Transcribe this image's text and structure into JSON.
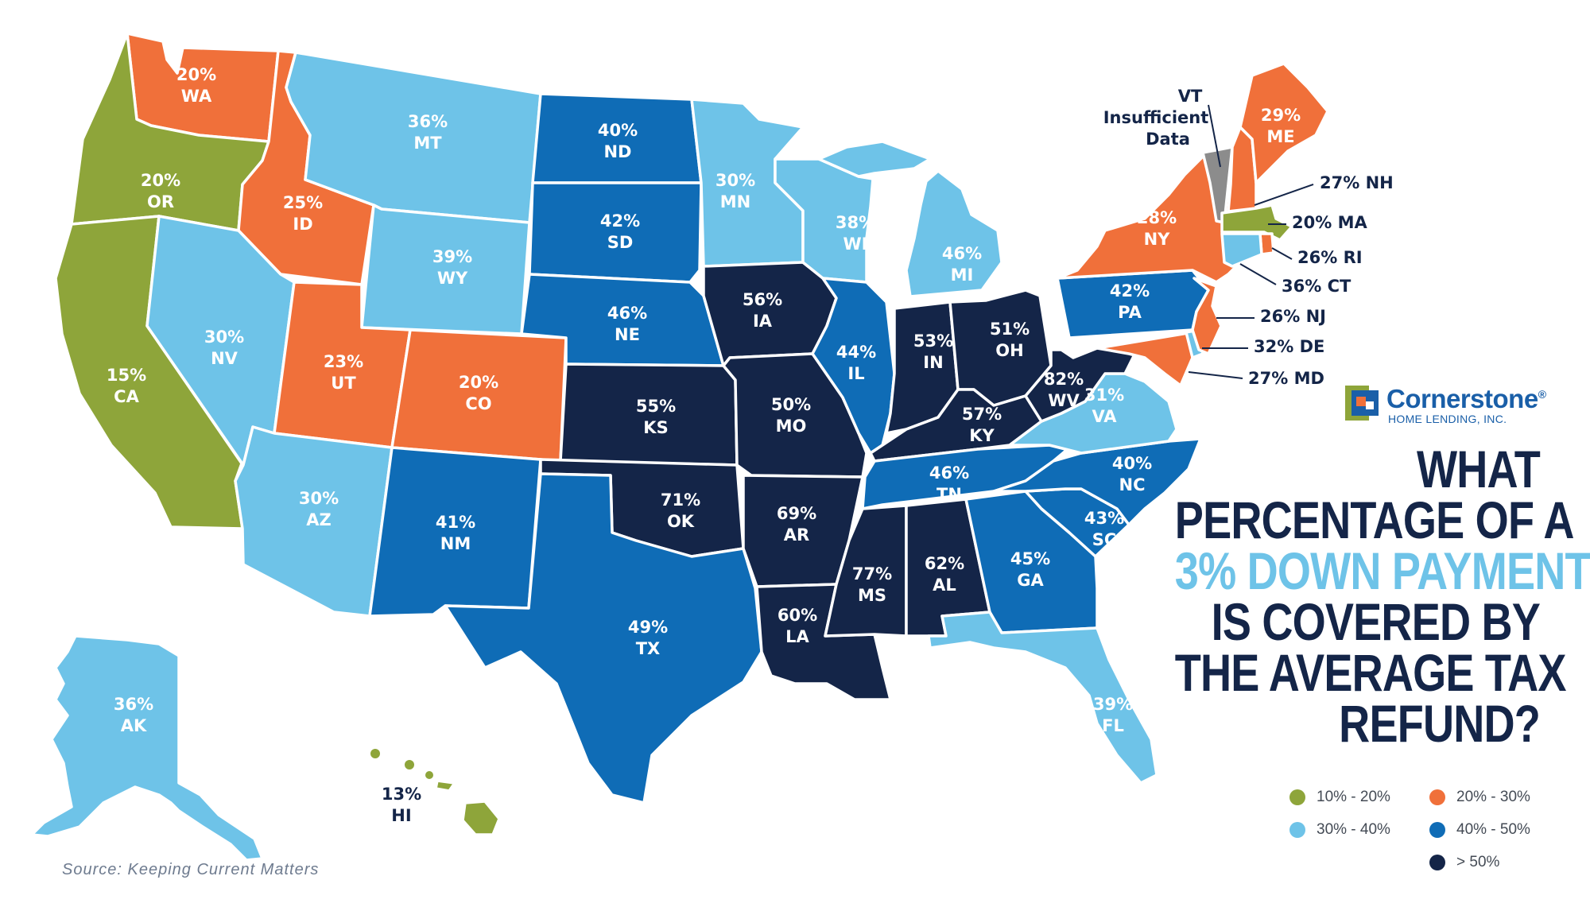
{
  "title": {
    "line1": "WHAT",
    "line2": "PERCENTAGE OF A",
    "line3": "3% DOWN PAYMENT",
    "line4": "IS COVERED BY",
    "line5": "THE AVERAGE TAX",
    "line6": "REFUND?"
  },
  "colors": {
    "c10_20": "#8ea53a",
    "c20_30": "#f0703a",
    "c30_40": "#6ec3e8",
    "c40_50": "#0f6cb6",
    "c50_plus": "#142548",
    "no_data": "#8c8c8c",
    "title_dark": "#142548",
    "title_accent": "#6ec3e8"
  },
  "logo": {
    "name": "Cornerstone",
    "registered": "®",
    "subtitle": "HOME LENDING, INC."
  },
  "legend": [
    {
      "label": "10% - 20%",
      "color": "#8ea53a"
    },
    {
      "label": "20% - 30%",
      "color": "#f0703a"
    },
    {
      "label": "30% - 40%",
      "color": "#6ec3e8"
    },
    {
      "label": "40% - 50%",
      "color": "#0f6cb6"
    },
    {
      "label": "> 50%",
      "color": "#142548"
    }
  ],
  "source": "Source: Keeping Current Matters",
  "states": {
    "WA": {
      "pct": "20%",
      "abbr": "WA"
    },
    "OR": {
      "pct": "20%",
      "abbr": "OR"
    },
    "CA": {
      "pct": "15%",
      "abbr": "CA"
    },
    "ID": {
      "pct": "25%",
      "abbr": "ID"
    },
    "NV": {
      "pct": "30%",
      "abbr": "NV"
    },
    "MT": {
      "pct": "36%",
      "abbr": "MT"
    },
    "WY": {
      "pct": "39%",
      "abbr": "WY"
    },
    "UT": {
      "pct": "23%",
      "abbr": "UT"
    },
    "CO": {
      "pct": "20%",
      "abbr": "CO"
    },
    "AZ": {
      "pct": "30%",
      "abbr": "AZ"
    },
    "NM": {
      "pct": "41%",
      "abbr": "NM"
    },
    "ND": {
      "pct": "40%",
      "abbr": "ND"
    },
    "SD": {
      "pct": "42%",
      "abbr": "SD"
    },
    "NE": {
      "pct": "46%",
      "abbr": "NE"
    },
    "KS": {
      "pct": "55%",
      "abbr": "KS"
    },
    "OK": {
      "pct": "71%",
      "abbr": "OK"
    },
    "TX": {
      "pct": "49%",
      "abbr": "TX"
    },
    "MN": {
      "pct": "30%",
      "abbr": "MN"
    },
    "IA": {
      "pct": "56%",
      "abbr": "IA"
    },
    "MO": {
      "pct": "50%",
      "abbr": "MO"
    },
    "AR": {
      "pct": "69%",
      "abbr": "AR"
    },
    "LA": {
      "pct": "60%",
      "abbr": "LA"
    },
    "WI": {
      "pct": "38%",
      "abbr": "WI"
    },
    "IL": {
      "pct": "44%",
      "abbr": "IL"
    },
    "MI": {
      "pct": "46%",
      "abbr": "MI"
    },
    "IN": {
      "pct": "53%",
      "abbr": "IN"
    },
    "OH": {
      "pct": "51%",
      "abbr": "OH"
    },
    "KY": {
      "pct": "57%",
      "abbr": "KY"
    },
    "TN": {
      "pct": "46%",
      "abbr": "TN"
    },
    "MS": {
      "pct": "77%",
      "abbr": "MS"
    },
    "AL": {
      "pct": "62%",
      "abbr": "AL"
    },
    "GA": {
      "pct": "45%",
      "abbr": "GA"
    },
    "FL": {
      "pct": "39%",
      "abbr": "FL"
    },
    "SC": {
      "pct": "43%",
      "abbr": "SC"
    },
    "NC": {
      "pct": "40%",
      "abbr": "NC"
    },
    "VA": {
      "pct": "31%",
      "abbr": "VA"
    },
    "WV": {
      "pct": "82%",
      "abbr": "WV"
    },
    "PA": {
      "pct": "42%",
      "abbr": "PA"
    },
    "NY": {
      "pct": "28%",
      "abbr": "NY"
    },
    "ME": {
      "pct": "29%",
      "abbr": "ME"
    },
    "AK": {
      "pct": "36%",
      "abbr": "AK"
    },
    "HI": {
      "pct": "13%",
      "abbr": "HI"
    }
  },
  "callouts": {
    "VT": {
      "line1": "VT",
      "line2": "Insufficient",
      "line3": "Data"
    },
    "NH": "27% NH",
    "MA": "20% MA",
    "RI": "26% RI",
    "CT": "36% CT",
    "NJ": "26% NJ",
    "DE": "32% DE",
    "MD": "27% MD"
  }
}
